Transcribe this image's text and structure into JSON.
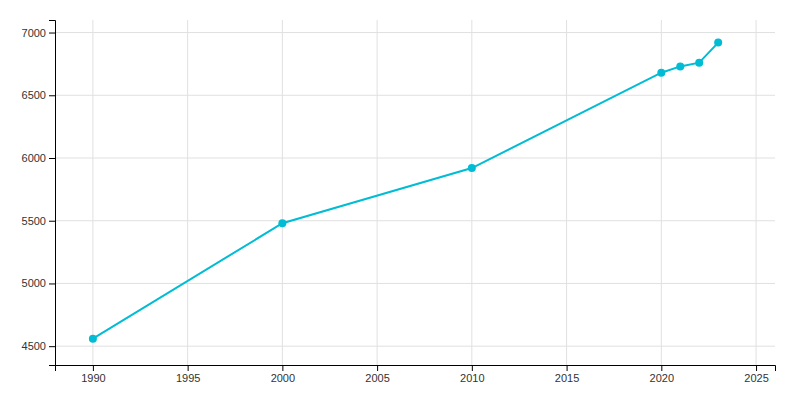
{
  "chart_data": {
    "type": "line",
    "x": [
      1990,
      2000,
      2010,
      2020,
      2021,
      2022,
      2023
    ],
    "values": [
      4560,
      5480,
      5920,
      6680,
      6730,
      6760,
      6920
    ],
    "color": "#00bcd4",
    "marker": "circle",
    "xlim": [
      1988,
      2026
    ],
    "ylim": [
      4350,
      7100
    ],
    "xticks": [
      1990,
      1995,
      2000,
      2005,
      2010,
      2015,
      2020,
      2025
    ],
    "yticks": [
      4500,
      5000,
      5500,
      6000,
      6500,
      7000
    ],
    "grid": true
  }
}
